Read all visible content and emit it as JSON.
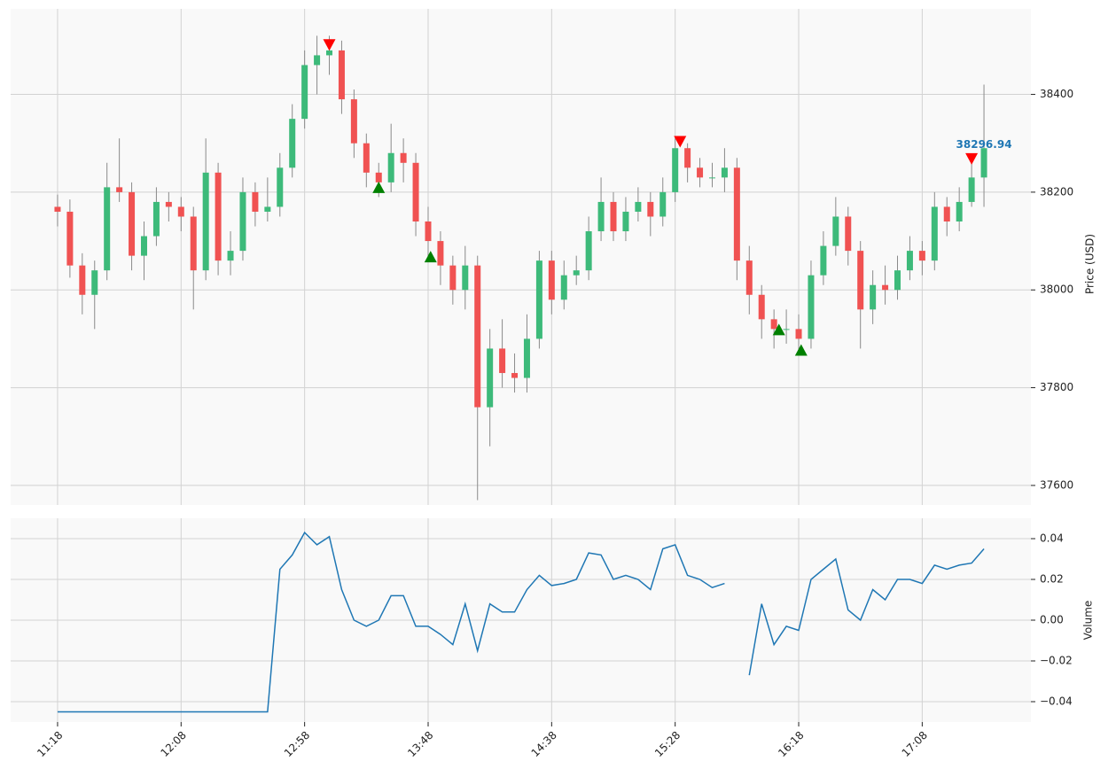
{
  "chart_data": [
    {
      "type": "candlestick",
      "y_label": "Price (USD)",
      "up_color": "#3dba7a",
      "down_color": "#f05252",
      "wick_color": "#8a8a8a",
      "x": [
        "11:18",
        "11:23",
        "11:28",
        "11:33",
        "11:38",
        "11:43",
        "11:48",
        "11:53",
        "11:58",
        "12:03",
        "12:08",
        "12:13",
        "12:18",
        "12:23",
        "12:28",
        "12:33",
        "12:38",
        "12:43",
        "12:48",
        "12:53",
        "12:58",
        "13:03",
        "13:08",
        "13:13",
        "13:18",
        "13:23",
        "13:28",
        "13:33",
        "13:38",
        "13:43",
        "13:48",
        "13:53",
        "13:58",
        "14:03",
        "14:08",
        "14:13",
        "14:18",
        "14:23",
        "14:28",
        "14:33",
        "14:38",
        "14:43",
        "14:48",
        "14:53",
        "14:58",
        "15:03",
        "15:08",
        "15:13",
        "15:18",
        "15:23",
        "15:28",
        "15:33",
        "15:38",
        "15:43",
        "15:48",
        "15:53",
        "15:58",
        "16:03",
        "16:08",
        "16:13",
        "16:18",
        "16:23",
        "16:28",
        "16:33",
        "16:38",
        "16:43",
        "16:48",
        "16:53",
        "16:58",
        "17:03",
        "17:08",
        "17:13",
        "17:18",
        "17:23",
        "17:28",
        "17:33"
      ],
      "open": [
        38170,
        38160,
        38050,
        37990,
        38040,
        38210,
        38200,
        38070,
        38110,
        38180,
        38170,
        38150,
        38040,
        38240,
        38060,
        38080,
        38200,
        38160,
        38170,
        38250,
        38350,
        38460,
        38480,
        38490,
        38390,
        38300,
        38240,
        38220,
        38280,
        38260,
        38140,
        38100,
        38050,
        38000,
        38050,
        37760,
        37880,
        37830,
        37820,
        37900,
        38060,
        37980,
        38030,
        38040,
        38120,
        38180,
        38120,
        38160,
        38180,
        38150,
        38200,
        38290,
        38250,
        38230,
        38230,
        38250,
        38060,
        37990,
        37940,
        37920,
        37920,
        37900,
        38030,
        38090,
        38150,
        38080,
        37960,
        38010,
        38000,
        38040,
        38080,
        38060,
        38170,
        38140,
        38180,
        38230
      ],
      "high": [
        38195,
        38185,
        38075,
        38060,
        38260,
        38310,
        38220,
        38140,
        38210,
        38200,
        38190,
        38170,
        38310,
        38260,
        38120,
        38230,
        38220,
        38230,
        38280,
        38380,
        38490,
        38520,
        38520,
        38510,
        38410,
        38320,
        38260,
        38340,
        38310,
        38280,
        38170,
        38120,
        38070,
        38090,
        38070,
        37920,
        37940,
        37870,
        37950,
        38080,
        38080,
        38060,
        38070,
        38150,
        38230,
        38200,
        38190,
        38210,
        38200,
        38230,
        38310,
        38300,
        38270,
        38260,
        38290,
        38270,
        38090,
        38010,
        37960,
        37960,
        37950,
        38060,
        38120,
        38190,
        38170,
        38100,
        38040,
        38050,
        38070,
        38110,
        38100,
        38200,
        38190,
        38210,
        38260,
        38420
      ],
      "low": [
        38130,
        38025,
        37950,
        37920,
        38020,
        38180,
        38040,
        38020,
        38090,
        38140,
        38120,
        37960,
        38020,
        38030,
        38030,
        38060,
        38130,
        38140,
        38150,
        38230,
        38330,
        38400,
        38440,
        38360,
        38270,
        38210,
        38190,
        38200,
        38220,
        38110,
        38060,
        38010,
        37970,
        37960,
        37570,
        37680,
        37800,
        37790,
        37790,
        37880,
        37950,
        37960,
        38010,
        38020,
        38100,
        38100,
        38100,
        38140,
        38110,
        38130,
        38180,
        38220,
        38210,
        38210,
        38200,
        38020,
        37950,
        37900,
        37880,
        37890,
        37870,
        37880,
        38010,
        38070,
        38050,
        37880,
        37930,
        37970,
        37980,
        38020,
        38030,
        38040,
        38110,
        38120,
        38170,
        38170
      ],
      "close": [
        38160,
        38050,
        37990,
        38040,
        38210,
        38200,
        38070,
        38110,
        38180,
        38170,
        38150,
        38040,
        38240,
        38060,
        38080,
        38200,
        38160,
        38170,
        38250,
        38350,
        38460,
        38480,
        38490,
        38390,
        38300,
        38240,
        38220,
        38280,
        38260,
        38140,
        38100,
        38050,
        38000,
        38050,
        37760,
        37880,
        37830,
        37820,
        37900,
        38060,
        37980,
        38030,
        38040,
        38120,
        38180,
        38120,
        38160,
        38180,
        38150,
        38200,
        38290,
        38250,
        38230,
        38230,
        38250,
        38060,
        37990,
        37940,
        37920,
        37920,
        37900,
        38030,
        38090,
        38150,
        38080,
        37960,
        38010,
        38000,
        38040,
        38080,
        38060,
        38170,
        38140,
        38180,
        38230,
        38290
      ],
      "sell_signals": {
        "color": "#ff0000",
        "x": [
          "13:08",
          "15:30",
          "17:28"
        ],
        "values": [
          38502,
          38304,
          38269
        ]
      },
      "buy_signals": {
        "color": "#008000",
        "x": [
          "13:28",
          "13:49",
          "16:10",
          "16:19"
        ],
        "values": [
          38211,
          38069,
          37920,
          37878
        ]
      },
      "last_price": {
        "x": "17:33",
        "value": 38296.94,
        "color": "#1f77b4"
      },
      "xlim": [
        "10:59",
        "17:52"
      ],
      "ylim": [
        37560,
        38575
      ],
      "yticks": [
        37600,
        37800,
        38000,
        38200,
        38400
      ],
      "grid": true
    },
    {
      "type": "line",
      "y_label": "Volume",
      "x": [
        "11:18",
        "11:23",
        "11:28",
        "11:33",
        "11:38",
        "11:43",
        "11:48",
        "11:53",
        "11:58",
        "12:03",
        "12:08",
        "12:13",
        "12:18",
        "12:23",
        "12:28",
        "12:33",
        "12:38",
        "12:43",
        "12:48",
        "12:53",
        "12:58",
        "13:03",
        "13:08",
        "13:13",
        "13:18",
        "13:23",
        "13:28",
        "13:33",
        "13:38",
        "13:43",
        "13:48",
        "13:53",
        "13:58",
        "14:03",
        "14:08",
        "14:13",
        "14:18",
        "14:23",
        "14:28",
        "14:33",
        "14:38",
        "14:43",
        "14:48",
        "14:53",
        "14:58",
        "15:03",
        "15:08",
        "15:13",
        "15:18",
        "15:23",
        "15:28",
        "15:33",
        "15:38",
        "15:43",
        "15:48",
        "15:53",
        "15:58",
        "16:03",
        "16:08",
        "16:13",
        "16:18",
        "16:23",
        "16:28",
        "16:33",
        "16:38",
        "16:43",
        "16:48",
        "16:53",
        "16:58",
        "17:03",
        "17:08",
        "17:13",
        "17:18",
        "17:23",
        "17:28",
        "17:33"
      ],
      "series": [
        {
          "color": "#1f77b4",
          "values": [
            -0.045,
            -0.045,
            -0.045,
            -0.045,
            -0.045,
            -0.045,
            -0.045,
            -0.045,
            -0.045,
            -0.045,
            -0.045,
            -0.045,
            -0.045,
            -0.045,
            -0.045,
            -0.045,
            -0.045,
            -0.045,
            0.025,
            0.032,
            0.043,
            0.037,
            0.041,
            0.015,
            0.0,
            -0.003,
            0.0,
            0.012,
            0.012,
            -0.003,
            -0.003,
            -0.007,
            -0.012,
            0.008,
            -0.015,
            0.008,
            0.004,
            0.004,
            0.015,
            0.022,
            0.017,
            0.018,
            0.02,
            0.033,
            0.032,
            0.02,
            0.022,
            0.02,
            0.015,
            0.035,
            0.037,
            0.022,
            0.02,
            0.016,
            0.018,
            null,
            -0.027,
            0.008,
            -0.012,
            -0.003,
            -0.005,
            0.02,
            0.025,
            0.03,
            0.005,
            0.0,
            0.015,
            0.01,
            0.02,
            0.02,
            0.018,
            0.027,
            0.025,
            0.027,
            0.028,
            0.035
          ]
        }
      ],
      "xlim": [
        "10:59",
        "17:52"
      ],
      "ylim": [
        -0.05,
        0.05
      ],
      "yticks": [
        {
          "value": -0.04,
          "label": "−0.04"
        },
        {
          "value": -0.02,
          "label": "−0.02"
        },
        {
          "value": 0,
          "label": "0.00"
        },
        {
          "value": 0.02,
          "label": "0.02"
        },
        {
          "value": 0.04,
          "label": "0.04"
        }
      ],
      "xticks": [
        "11:18",
        "12:08",
        "12:58",
        "13:48",
        "14:38",
        "15:28",
        "16:18",
        "17:08"
      ],
      "grid": true
    }
  ]
}
